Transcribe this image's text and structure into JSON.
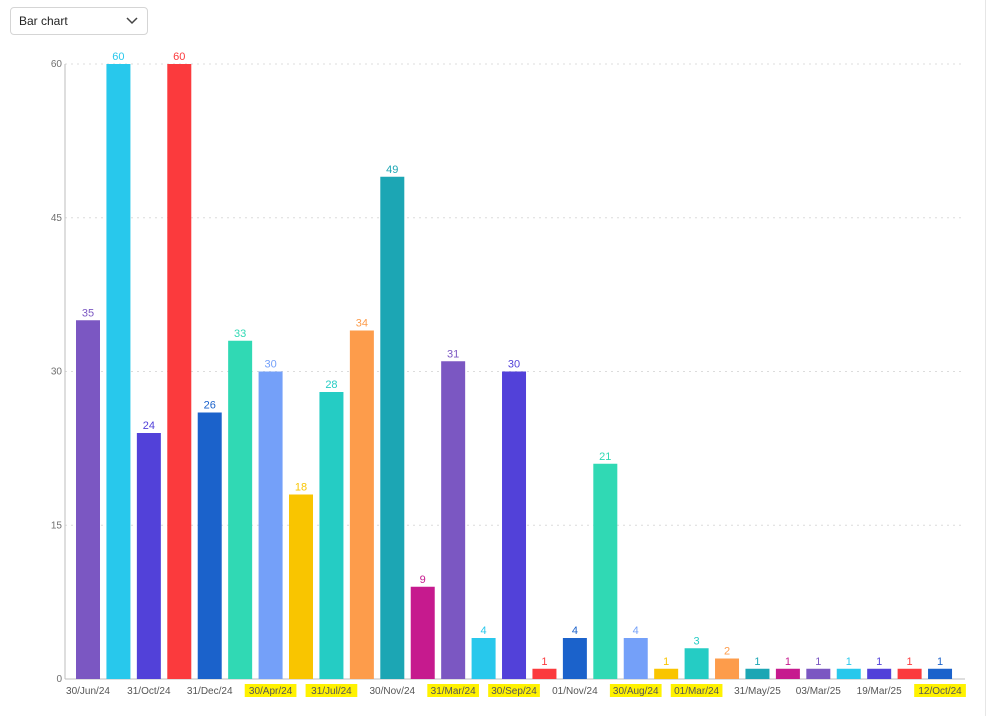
{
  "dropdown": {
    "selected": "Bar chart",
    "icon": "chevron-down-icon"
  },
  "chart_data": {
    "type": "bar",
    "title": "",
    "xlabel": "",
    "ylabel": "",
    "ylim": [
      0,
      60
    ],
    "yticks": [
      0,
      15,
      30,
      45,
      60
    ],
    "grid": true,
    "bars": [
      {
        "value": 35,
        "color": "#7b57c2"
      },
      {
        "value": 60,
        "color": "#28c8ec"
      },
      {
        "value": 24,
        "color": "#5241d9"
      },
      {
        "value": 60,
        "color": "#fb3a3d"
      },
      {
        "value": 26,
        "color": "#1b62cb"
      },
      {
        "value": 33,
        "color": "#30d9b4"
      },
      {
        "value": 30,
        "color": "#74a0f9"
      },
      {
        "value": 18,
        "color": "#f9c500"
      },
      {
        "value": 28,
        "color": "#25ccc4"
      },
      {
        "value": 34,
        "color": "#fd9c4b"
      },
      {
        "value": 49,
        "color": "#1ca6b4"
      },
      {
        "value": 9,
        "color": "#c61a8e"
      },
      {
        "value": 31,
        "color": "#7b57c2"
      },
      {
        "value": 4,
        "color": "#28c8ec"
      },
      {
        "value": 30,
        "color": "#5241d9"
      },
      {
        "value": 1,
        "color": "#fb3a3d"
      },
      {
        "value": 4,
        "color": "#1b62cb"
      },
      {
        "value": 21,
        "color": "#30d9b4"
      },
      {
        "value": 4,
        "color": "#74a0f9"
      },
      {
        "value": 1,
        "color": "#f9c500"
      },
      {
        "value": 3,
        "color": "#25ccc4"
      },
      {
        "value": 2,
        "color": "#fd9c4b"
      },
      {
        "value": 1,
        "color": "#1ca6b4"
      },
      {
        "value": 1,
        "color": "#c61a8e"
      },
      {
        "value": 1,
        "color": "#7b57c2"
      },
      {
        "value": 1,
        "color": "#28c8ec"
      },
      {
        "value": 1,
        "color": "#5241d9"
      },
      {
        "value": 1,
        "color": "#fb3a3d"
      },
      {
        "value": 1,
        "color": "#1b62cb"
      }
    ],
    "xtick_labels": [
      {
        "label": "30/Jun/24",
        "highlight": false
      },
      {
        "label": "31/Oct/24",
        "highlight": false
      },
      {
        "label": "31/Dec/24",
        "highlight": false
      },
      {
        "label": "30/Apr/24",
        "highlight": true
      },
      {
        "label": "31/Jul/24",
        "highlight": true
      },
      {
        "label": "30/Nov/24",
        "highlight": false
      },
      {
        "label": "31/Mar/24",
        "highlight": true
      },
      {
        "label": "30/Sep/24",
        "highlight": true
      },
      {
        "label": "01/Nov/24",
        "highlight": false
      },
      {
        "label": "30/Aug/24",
        "highlight": true
      },
      {
        "label": "01/Mar/24",
        "highlight": true
      },
      {
        "label": "31/May/25",
        "highlight": false
      },
      {
        "label": "03/Mar/25",
        "highlight": false
      },
      {
        "label": "19/Mar/25",
        "highlight": false
      },
      {
        "label": "12/Oct/24",
        "highlight": true
      }
    ],
    "highlight_color": "#fff200"
  }
}
